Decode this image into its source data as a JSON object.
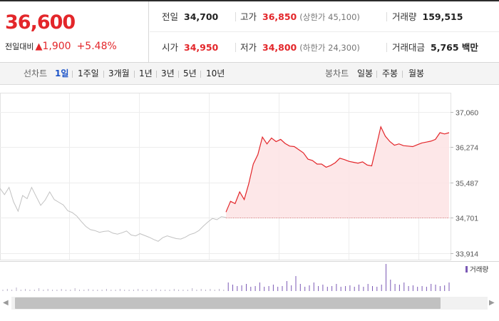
{
  "quote": {
    "price": "36,600",
    "change_caption": "전일대비",
    "change_arrow": "▲",
    "change": "1,900",
    "change_pct": "+5.48%",
    "prev_label": "전일",
    "prev_value": "34,700",
    "high_label": "고가",
    "high_value": "36,850",
    "upper_limit": "(상한가 45,100)",
    "volume_label": "거래량",
    "volume_value": "159,515",
    "open_label": "시가",
    "open_value": "34,950",
    "low_label": "저가",
    "low_value": "34,800",
    "lower_limit": "(하한가 24,300)",
    "amount_label": "거래대금",
    "amount_value": "5,765 백만"
  },
  "tabs": {
    "line_caption": "선차트",
    "line_tabs": [
      "1일",
      "1주일",
      "3개월",
      "1년",
      "3년",
      "5년",
      "10년"
    ],
    "active_tab": "1일",
    "candle_caption": "봉차트",
    "candle_tabs": [
      "일봉",
      "주봉",
      "월봉"
    ]
  },
  "colors": {
    "up": "#e3262a",
    "down": "#1b5fd1",
    "area_fill": "#fde3e4",
    "volume_bar": "#7b59b5",
    "gray_line": "#c2c2c2"
  },
  "chart_data": {
    "type": "line",
    "y_ticks": [
      "37,060",
      "36,274",
      "35,487",
      "34,701",
      "33,914"
    ],
    "ylim": [
      33914,
      37060
    ],
    "prev_close": 34701,
    "legend": "거래량",
    "previous_day_series": [
      35360,
      35220,
      35380,
      35060,
      34850,
      35200,
      35130,
      35380,
      35180,
      34980,
      35100,
      35280,
      35110,
      35050,
      34990,
      34860,
      34820,
      34740,
      34620,
      34510,
      34440,
      34420,
      34380,
      34400,
      34410,
      34360,
      34340,
      34370,
      34410,
      34320,
      34300,
      34350,
      34310,
      34270,
      34220,
      34180,
      34260,
      34300,
      34270,
      34240,
      34230,
      34270,
      34330,
      34360,
      34420,
      34520,
      34610,
      34690,
      34660,
      34730,
      34710
    ],
    "today_series": [
      34830,
      35070,
      35020,
      35280,
      35110,
      35460,
      35900,
      36110,
      36500,
      36350,
      36480,
      36400,
      36450,
      36360,
      36300,
      36290,
      36220,
      36150,
      36010,
      35980,
      35900,
      35900,
      35830,
      35870,
      35930,
      36030,
      36000,
      35960,
      35940,
      35920,
      35950,
      35880,
      35860,
      36290,
      36730,
      36520,
      36400,
      36320,
      36350,
      36310,
      36300,
      36290,
      36330,
      36370,
      36390,
      36410,
      36450,
      36600,
      36570,
      36600
    ],
    "volume": [
      2,
      3,
      2,
      5,
      2,
      3,
      2,
      2,
      4,
      2,
      3,
      2,
      2,
      3,
      2,
      2,
      4,
      2,
      2,
      3,
      2,
      2,
      2,
      3,
      2,
      2,
      3,
      2,
      2,
      2,
      3,
      2,
      2,
      2,
      3,
      2,
      2,
      2,
      3,
      2,
      2,
      2,
      4,
      2,
      3,
      2,
      3,
      2,
      3,
      2,
      12,
      9,
      7,
      8,
      10,
      6,
      7,
      12,
      6,
      7,
      9,
      6,
      7,
      14,
      8,
      21,
      10,
      6,
      8,
      12,
      7,
      9,
      6,
      7,
      10,
      6,
      7,
      8,
      6,
      9,
      6,
      10,
      7,
      6,
      9,
      38,
      16,
      10,
      9,
      12,
      7,
      8,
      6,
      7,
      6,
      10,
      9,
      7,
      8,
      12
    ]
  },
  "scrollbar": {
    "left_arrow": "◀",
    "right_arrow": "▶"
  }
}
